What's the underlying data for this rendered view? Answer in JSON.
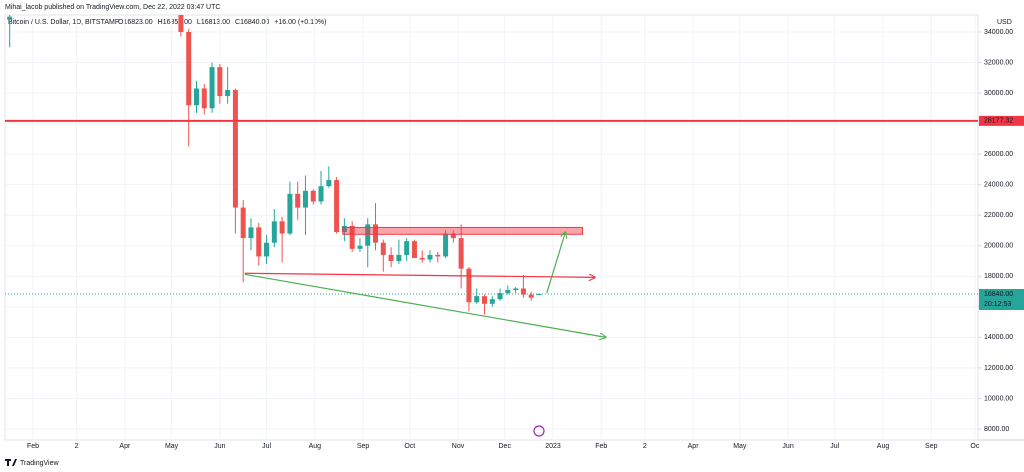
{
  "chart_data": {
    "type": "candlestick",
    "subtitle": "Mihai_lacob published on TradingView.com, Dec 22, 2022 03:47 UTC",
    "title": "Bitcoin / U.S. Dollar, 1D, BITSTAMP",
    "ohlc_labels": [
      "O16823.00",
      "H16856.00",
      "L16813.00",
      "C16840.00",
      "+16.00 (+0.10%)"
    ],
    "currency": "USD",
    "watermark": "TradingView",
    "x": [
      16,
      126,
      131,
      136,
      141,
      146,
      151,
      156,
      161,
      166,
      171,
      176,
      181,
      186,
      191,
      196,
      201,
      206,
      211,
      216,
      221,
      226,
      231,
      236,
      241,
      246,
      251,
      256,
      261,
      266,
      271,
      276,
      281,
      286,
      291,
      296,
      301,
      306,
      311,
      316,
      321,
      326,
      331,
      336,
      341,
      346,
      351,
      356
    ],
    "open": [
      34800,
      36500,
      34000,
      29200,
      30300,
      29000,
      31700,
      29800,
      30200,
      22500,
      20500,
      21200,
      19300,
      20200,
      21600,
      20800,
      23400,
      22500,
      23600,
      22900,
      23900,
      24300,
      20900,
      21300,
      19800,
      20000,
      21400,
      20200,
      19400,
      19000,
      19400,
      20300,
      19200,
      19100,
      19400,
      19300,
      20800,
      20500,
      18500,
      16300,
      16700,
      16200,
      16500,
      16900,
      17100,
      17200,
      16800,
      16823
    ],
    "high": [
      35110,
      36600,
      34200,
      30800,
      30600,
      32000,
      31900,
      31700,
      30300,
      23000,
      21800,
      21500,
      20700,
      22400,
      21900,
      24200,
      24200,
      24600,
      23700,
      24900,
      25200,
      24500,
      21800,
      21600,
      20500,
      21800,
      22800,
      20400,
      19900,
      20400,
      20500,
      20400,
      19700,
      19700,
      19600,
      21000,
      21000,
      21400,
      18600,
      17200,
      16800,
      16700,
      17200,
      17400,
      17300,
      18100,
      17000,
      16856
    ],
    "low": [
      33000,
      33700,
      26500,
      28700,
      28600,
      28700,
      29300,
      29300,
      20800,
      17600,
      19700,
      18700,
      18800,
      19900,
      18900,
      20700,
      21700,
      20700,
      22700,
      22700,
      23800,
      20800,
      20300,
      19600,
      19600,
      18600,
      19700,
      18300,
      18600,
      18800,
      19000,
      19200,
      18900,
      18900,
      18900,
      19200,
      20200,
      17200,
      15700,
      16200,
      15500,
      16000,
      16400,
      16800,
      16900,
      16600,
      16400,
      16813
    ],
    "close": [
      35000,
      34000,
      29200,
      30300,
      29000,
      31700,
      29800,
      30200,
      22500,
      20500,
      21200,
      19300,
      20200,
      21600,
      20800,
      23400,
      22500,
      23600,
      22900,
      23900,
      24300,
      20900,
      21300,
      19800,
      20000,
      21400,
      20200,
      19400,
      19000,
      19400,
      20300,
      19200,
      19100,
      19400,
      19300,
      20800,
      20500,
      18500,
      16300,
      16700,
      16200,
      16500,
      16900,
      17100,
      17200,
      16800,
      16600,
      16840
    ],
    "up_color": "#26a69a",
    "down_color": "#ef5350",
    "xlim": [
      13,
      638
    ],
    "xticks": [
      {
        "value": 31,
        "label": "Feb"
      },
      {
        "value": 59,
        "label": "2"
      },
      {
        "value": 90,
        "label": "Apr"
      },
      {
        "value": 120,
        "label": "May"
      },
      {
        "value": 151,
        "label": "Jun"
      },
      {
        "value": 181,
        "label": "Jul"
      },
      {
        "value": 212,
        "label": "Aug"
      },
      {
        "value": 243,
        "label": "Sep"
      },
      {
        "value": 273,
        "label": "Oct"
      },
      {
        "value": 304,
        "label": "Nov"
      },
      {
        "value": 334,
        "label": "Dec"
      },
      {
        "value": 365,
        "label": "2023"
      },
      {
        "value": 396,
        "label": "Feb"
      },
      {
        "value": 424,
        "label": "2"
      },
      {
        "value": 455,
        "label": "Apr"
      },
      {
        "value": 485,
        "label": "May"
      },
      {
        "value": 516,
        "label": "Jun"
      },
      {
        "value": 546,
        "label": "Jul"
      },
      {
        "value": 577,
        "label": "Aug"
      },
      {
        "value": 608,
        "label": "Sep"
      },
      {
        "value": 636,
        "label": "Oc"
      }
    ],
    "ylim": [
      7280,
      35110
    ],
    "yticks": [
      {
        "value": 8000,
        "label": "8000.00"
      },
      {
        "value": 10000,
        "label": "10000.00"
      },
      {
        "value": 12000,
        "label": "12000.00"
      },
      {
        "value": 14000,
        "label": "14000.00"
      },
      {
        "value": 16000,
        "label": "16000.00"
      },
      {
        "value": 18000,
        "label": "18000.00"
      },
      {
        "value": 20000,
        "label": "20000.00"
      },
      {
        "value": 22000,
        "label": "22000.00"
      },
      {
        "value": 24000,
        "label": "24000.00"
      },
      {
        "value": 26000,
        "label": "26000.00"
      },
      {
        "value": 28000,
        "label": "28000.00"
      },
      {
        "value": 30000,
        "label": "30000.00"
      },
      {
        "value": 32000,
        "label": "32000.00"
      },
      {
        "value": 34000,
        "label": "34000.00"
      }
    ],
    "grid": true,
    "last_price": {
      "value": 16840,
      "label": "16840.00",
      "color": "#26a69a"
    },
    "countdown": "20:12:53",
    "annotations": [
      {
        "type": "hline",
        "value": 28177.32,
        "label": "28177.32",
        "color": "#f23645"
      },
      {
        "type": "rect",
        "x": [
          230,
          384
        ],
        "y": [
          20750,
          21200
        ],
        "color": "#f23645"
      },
      {
        "type": "arrow",
        "x": [
          167,
          392
        ],
        "y": [
          18200,
          17930
        ],
        "color": "#f23645"
      },
      {
        "type": "arrow",
        "x": [
          167,
          399
        ],
        "y": [
          18130,
          14000
        ],
        "color": "#4caf50"
      },
      {
        "type": "arrow",
        "x": [
          361,
          373
        ],
        "y": [
          16900,
          20900
        ],
        "color": "#4caf50"
      }
    ]
  }
}
